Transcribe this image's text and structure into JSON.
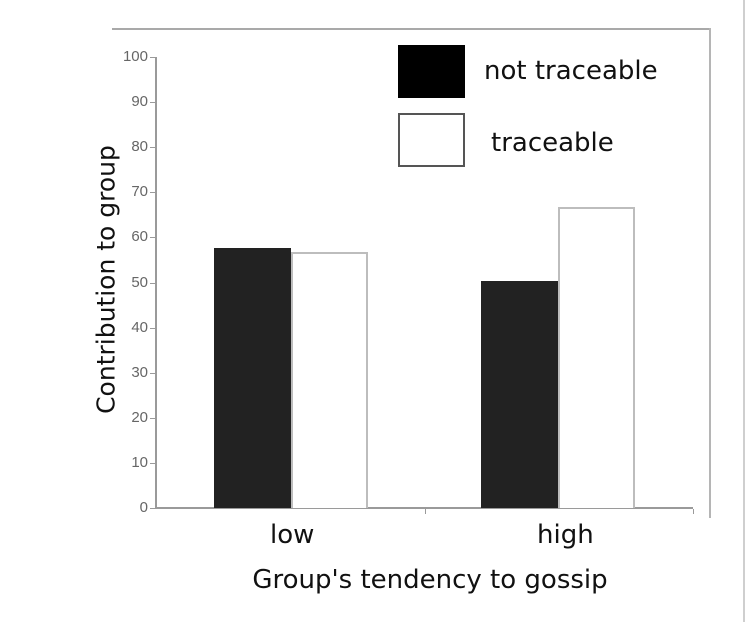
{
  "chart_data": {
    "type": "bar",
    "title": "",
    "xlabel": "Group's tendency to gossip",
    "ylabel": "Contribution to group",
    "categories": [
      "low",
      "high"
    ],
    "series": [
      {
        "name": "not traceable",
        "color": "#222222",
        "values": [
          57.6,
          50.3
        ]
      },
      {
        "name": "traceable",
        "color": "#ffffff",
        "values": [
          56.8,
          66.7
        ]
      }
    ],
    "ylim": [
      0,
      100
    ],
    "yticks": [
      "0",
      "10",
      "20",
      "30",
      "40",
      "50",
      "60",
      "70",
      "80",
      "90",
      "100"
    ],
    "grid": false,
    "legend_position": "top-right"
  },
  "legend": {
    "items": [
      {
        "label": "not traceable"
      },
      {
        "label": "traceable"
      }
    ]
  }
}
